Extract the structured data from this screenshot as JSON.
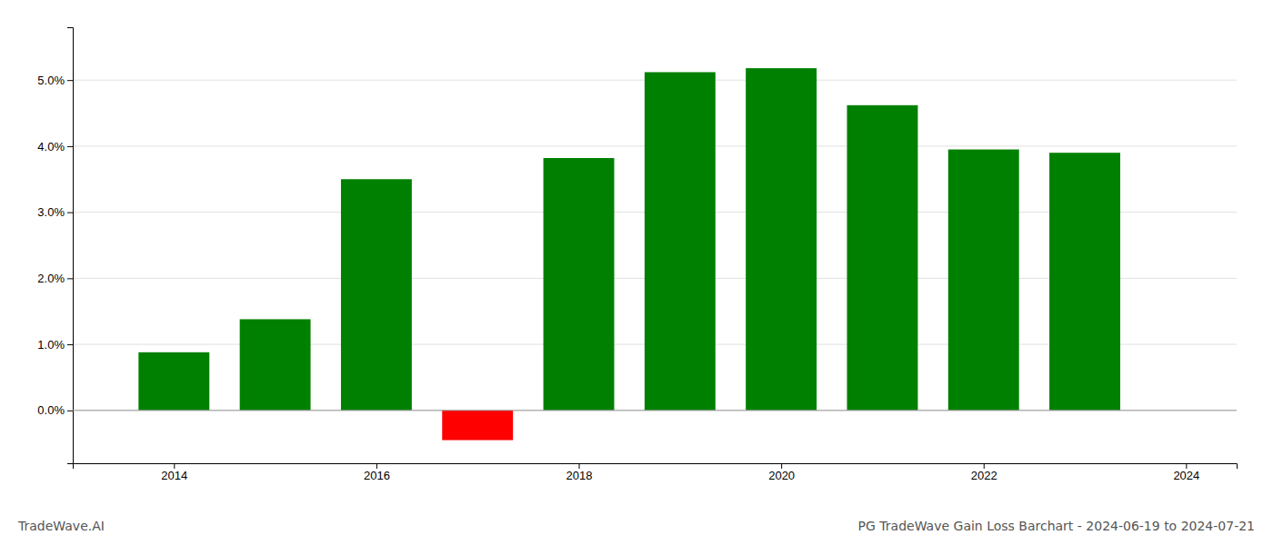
{
  "chart_data": {
    "type": "bar",
    "title": "PG TradeWave Gain Loss Barchart - 2024-06-19 to 2024-07-21",
    "annotations": [
      {
        "text": "TradeWave.AI"
      }
    ],
    "x": [
      2014,
      2015,
      2016,
      2017,
      2018,
      2019,
      2020,
      2021,
      2022,
      2023
    ],
    "values": [
      0.0088,
      0.0138,
      0.035,
      -0.0045,
      0.0382,
      0.0512,
      0.0518,
      0.0462,
      0.0395,
      0.039
    ],
    "colors": [
      "#008000",
      "#008000",
      "#008000",
      "#ff0000",
      "#008000",
      "#008000",
      "#008000",
      "#008000",
      "#008000",
      "#008000"
    ],
    "xlim": [
      2013.0,
      2024.5
    ],
    "xticks": [
      2014,
      2016,
      2018,
      2020,
      2022,
      2024
    ],
    "ylim": [
      -0.008,
      0.058
    ],
    "yticks": [
      {
        "value": 0.0,
        "label": "0.0%"
      },
      {
        "value": 0.01,
        "label": "1.0%"
      },
      {
        "value": 0.02,
        "label": "2.0%"
      },
      {
        "value": 0.03,
        "label": "3.0%"
      },
      {
        "value": 0.04,
        "label": "4.0%"
      },
      {
        "value": 0.05,
        "label": "5.0%"
      }
    ],
    "grid": true
  }
}
